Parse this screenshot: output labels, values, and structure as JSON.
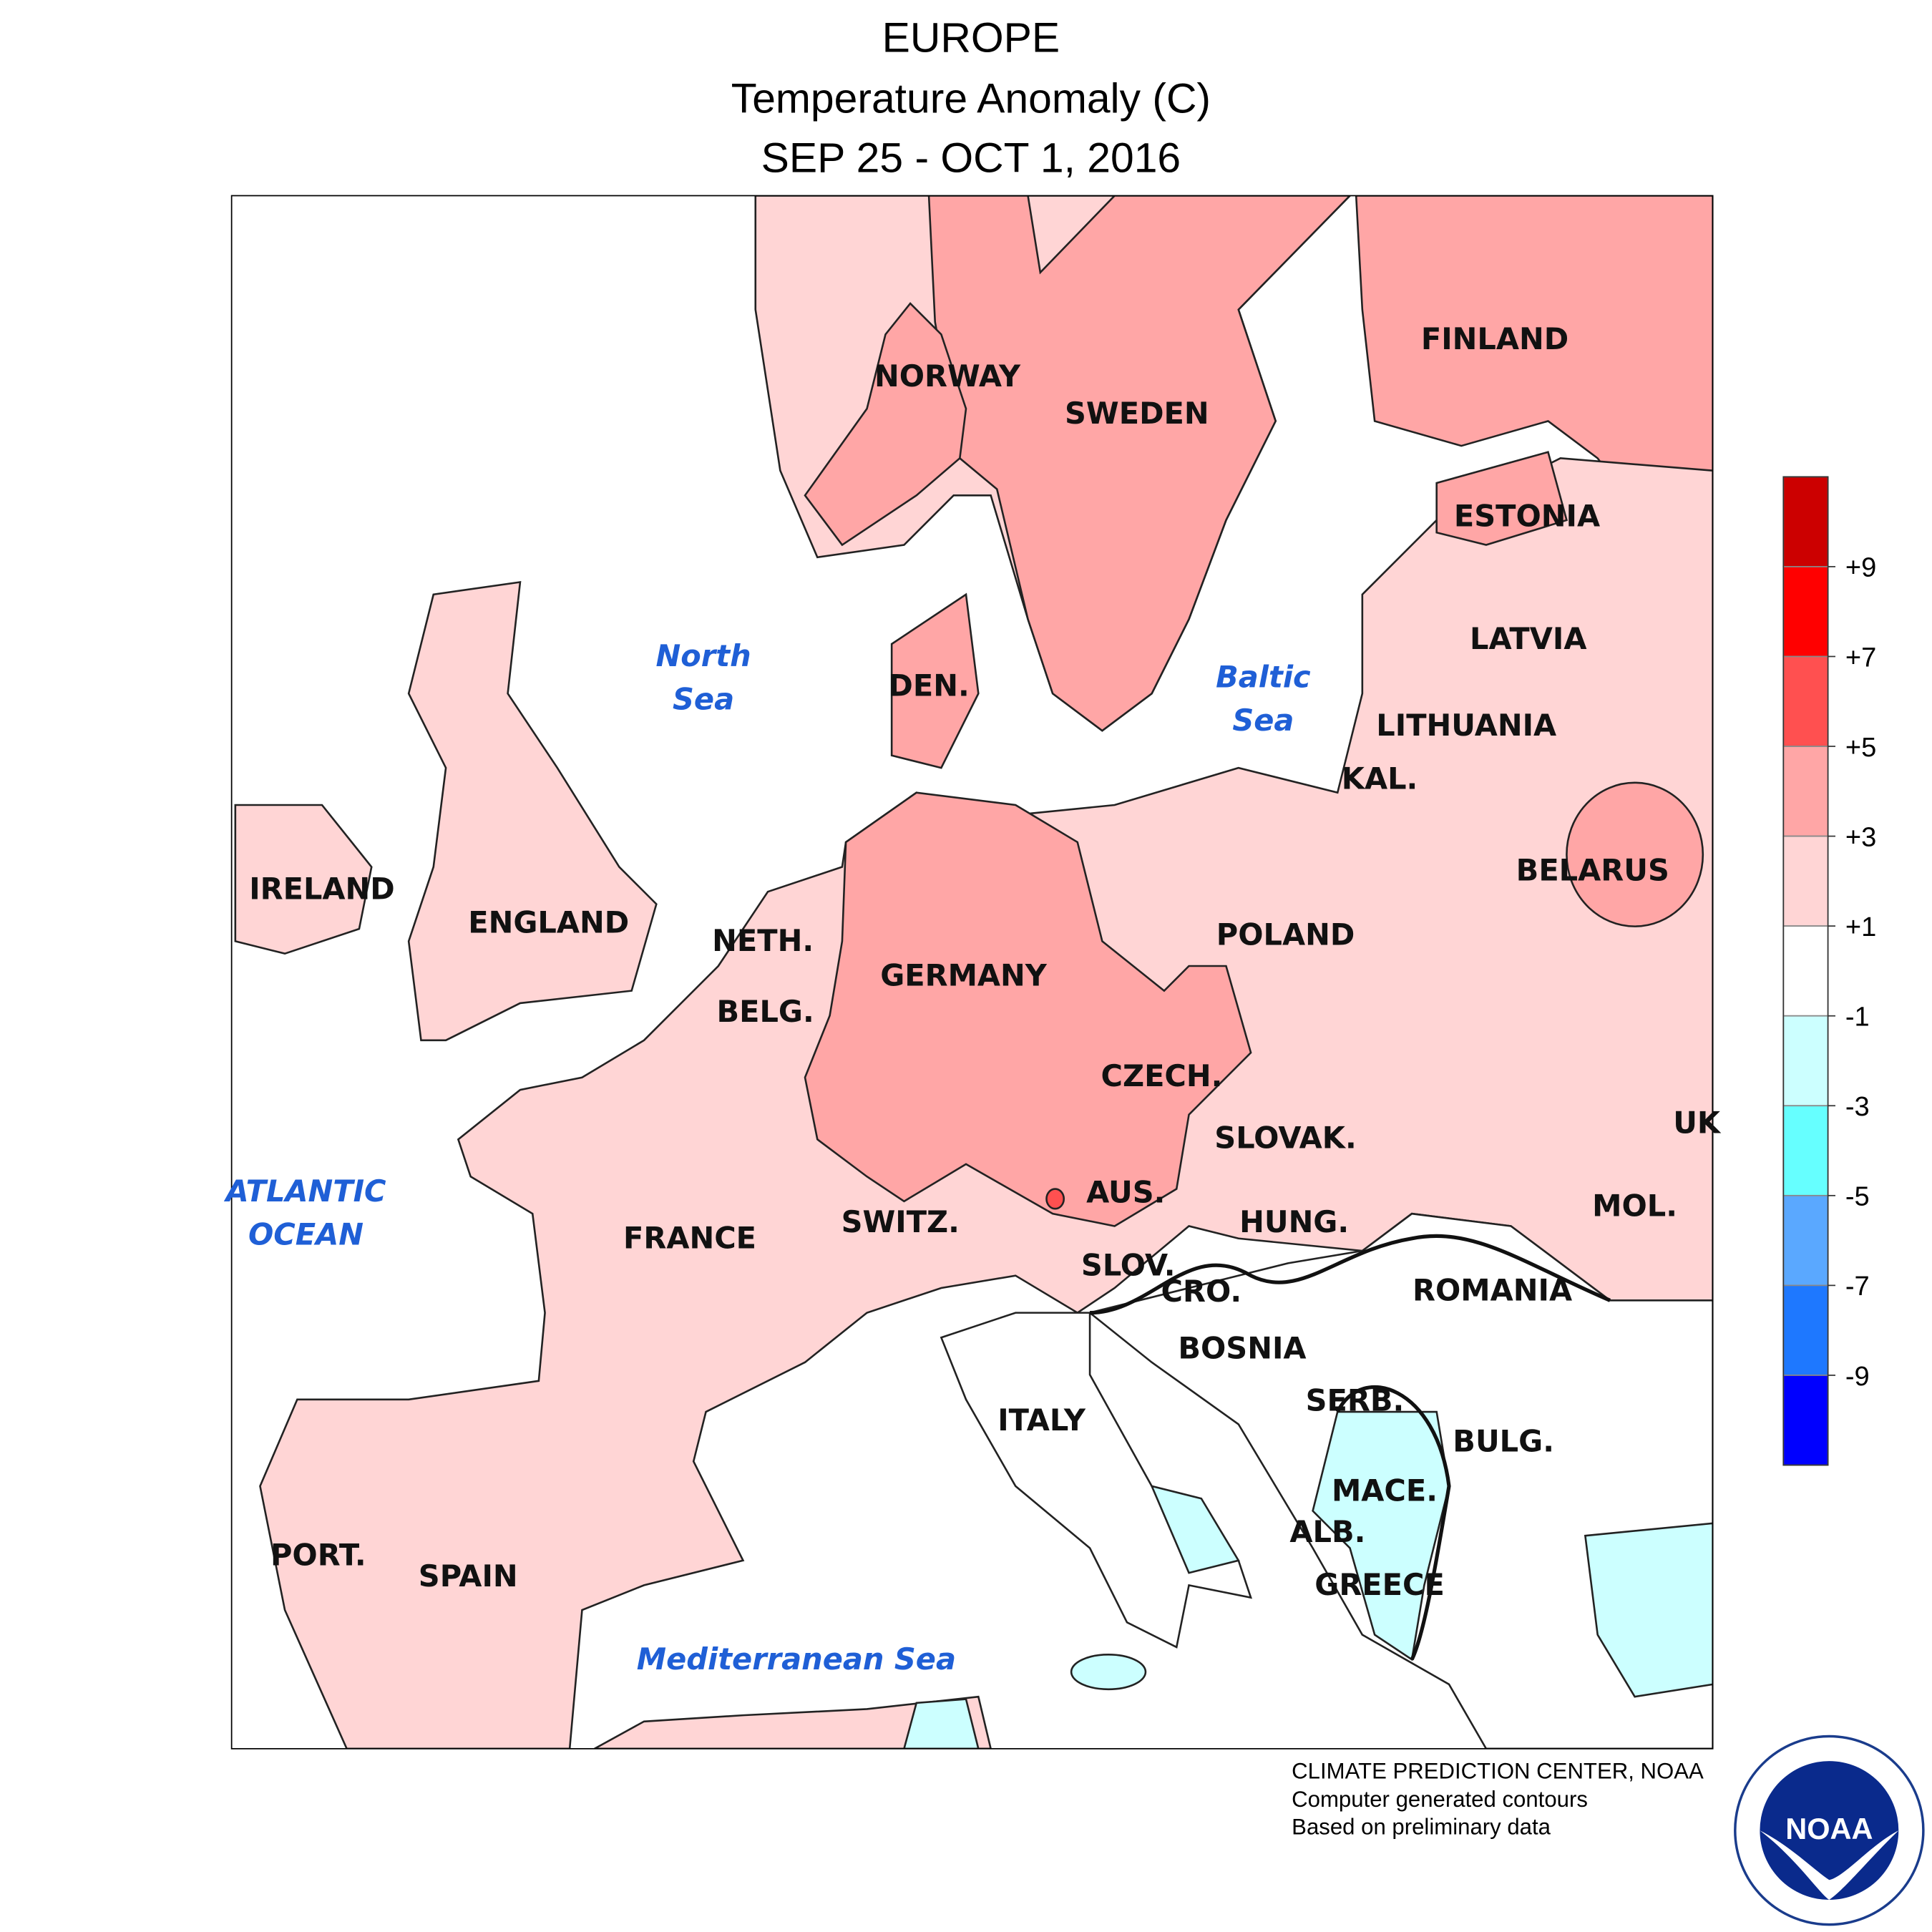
{
  "header": {
    "title": "EUROPE",
    "subtitle": "Temperature Anomaly (C)",
    "date": "SEP 25 - OCT 1, 2016"
  },
  "countries": [
    "NORWAY",
    "SWEDEN",
    "FINLAND",
    "ESTONIA",
    "LATVIA",
    "LITHUANIA",
    "KAL.",
    "BELARUS",
    "DEN.",
    "IRELAND",
    "ENGLAND",
    "NETH.",
    "BELG.",
    "GERMANY",
    "POLAND",
    "CZECH.",
    "SLOVAK.",
    "UK",
    "AUS.",
    "SWITZ.",
    "FRANCE",
    "HUNG.",
    "MOL.",
    "SLOV.",
    "CRO.",
    "ROMANIA",
    "BOSNIA",
    "SERB.",
    "ITALY",
    "BULG.",
    "MACE.",
    "ALB.",
    "GREECE",
    "PORT.",
    "SPAIN"
  ],
  "seas": {
    "north_sea": [
      "North",
      "Sea"
    ],
    "baltic_sea": [
      "Baltic",
      "Sea"
    ],
    "atlantic": [
      "ATLANTIC",
      "OCEAN"
    ],
    "mediterranean": "Mediterranean Sea"
  },
  "colorbar": {
    "colors": [
      "#cc0000",
      "#ff0000",
      "#ff5050",
      "#ffa6a6",
      "#ffd5d5",
      "#ffffff",
      "#ccffff",
      "#66ffff",
      "#5aa8ff",
      "#1e78ff",
      "#0000ff"
    ],
    "ticks": [
      {
        "value": 9,
        "label": "+9"
      },
      {
        "value": 7,
        "label": "+7"
      },
      {
        "value": 5,
        "label": "+5"
      },
      {
        "value": 3,
        "label": "+3"
      },
      {
        "value": 1,
        "label": "+1"
      },
      -1,
      -3,
      -5,
      -7,
      -9
    ]
  },
  "footer": [
    "CLIMATE PREDICTION CENTER, NOAA",
    "Computer generated contours",
    "Based on preliminary data"
  ],
  "logo": "NOAA"
}
